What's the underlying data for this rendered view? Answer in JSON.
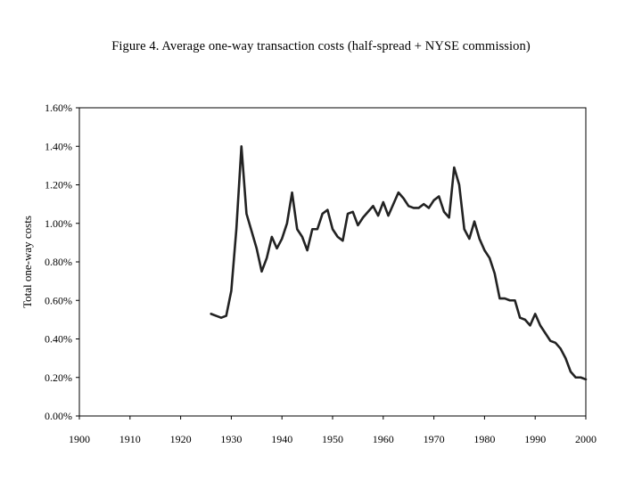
{
  "chart_data": {
    "type": "line",
    "title": "Figure 4.  Average one-way transaction costs (half-spread + NYSE commission)",
    "xlabel": "",
    "ylabel": "Total one-way costs",
    "xlim": [
      1900,
      2000
    ],
    "ylim": [
      0,
      0.016
    ],
    "x_ticks": [
      1900,
      1910,
      1920,
      1930,
      1940,
      1950,
      1960,
      1970,
      1980,
      1990,
      2000
    ],
    "x_tick_labels": [
      "1900",
      "1910",
      "1920",
      "1930",
      "1940",
      "1950",
      "1960",
      "1970",
      "1980",
      "1990",
      "2000"
    ],
    "y_ticks": [
      0,
      0.002,
      0.004,
      0.006,
      0.008,
      0.01,
      0.012,
      0.014,
      0.016
    ],
    "y_tick_labels": [
      "0.00%",
      "0.20%",
      "0.40%",
      "0.60%",
      "0.80%",
      "1.00%",
      "1.20%",
      "1.40%",
      "1.60%"
    ],
    "grid": false,
    "series": [
      {
        "name": "Total one-way costs",
        "color": "#222222",
        "x": [
          1926,
          1927,
          1928,
          1929,
          1930,
          1931,
          1932,
          1933,
          1934,
          1935,
          1936,
          1937,
          1938,
          1939,
          1940,
          1941,
          1942,
          1943,
          1944,
          1945,
          1946,
          1947,
          1948,
          1949,
          1950,
          1951,
          1952,
          1953,
          1954,
          1955,
          1956,
          1957,
          1958,
          1959,
          1960,
          1961,
          1962,
          1963,
          1964,
          1965,
          1966,
          1967,
          1968,
          1969,
          1970,
          1971,
          1972,
          1973,
          1974,
          1975,
          1976,
          1977,
          1978,
          1979,
          1980,
          1981,
          1982,
          1983,
          1984,
          1985,
          1986,
          1987,
          1988,
          1989,
          1990,
          1991,
          1992,
          1993,
          1994,
          1995,
          1996,
          1997,
          1998,
          1999,
          2000
        ],
        "values": [
          0.0053,
          0.0052,
          0.0051,
          0.0052,
          0.0065,
          0.0097,
          0.014,
          0.0105,
          0.0096,
          0.0087,
          0.0075,
          0.0082,
          0.0093,
          0.0087,
          0.0092,
          0.01,
          0.0116,
          0.0097,
          0.0093,
          0.0086,
          0.0097,
          0.0097,
          0.0105,
          0.0107,
          0.0097,
          0.0093,
          0.0091,
          0.0105,
          0.0106,
          0.0099,
          0.0103,
          0.0106,
          0.0109,
          0.0104,
          0.0111,
          0.0104,
          0.011,
          0.0116,
          0.0113,
          0.0109,
          0.0108,
          0.0108,
          0.011,
          0.0108,
          0.0112,
          0.0114,
          0.0106,
          0.0103,
          0.0129,
          0.012,
          0.0097,
          0.0092,
          0.0101,
          0.0092,
          0.0086,
          0.0082,
          0.0074,
          0.0061,
          0.0061,
          0.006,
          0.006,
          0.0051,
          0.005,
          0.0047,
          0.0053,
          0.0047,
          0.0043,
          0.0039,
          0.0038,
          0.0035,
          0.003,
          0.0023,
          0.002,
          0.002,
          0.0019
        ]
      }
    ]
  }
}
